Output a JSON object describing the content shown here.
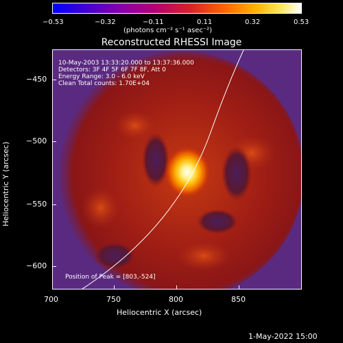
{
  "colorbar": {
    "ticks": [
      "−0.53",
      "−0.32",
      "−0.11",
      "0.11",
      "0.32",
      "0.53"
    ],
    "unit": "(photons cm⁻² s⁻¹ asec⁻²)"
  },
  "title": "Reconstructed RHESSI Image",
  "annotations": {
    "time_range": "10-May-2003 13:33:20.000 to 13:37:36.000",
    "detectors": "Detectors: 3F 4F 5F 6F 7F 8F, Att 0",
    "energy_range": "Energy Range: 3.0 - 6.0 keV",
    "clean_counts": "Clean     Total counts: 1.70E+04",
    "peak_position": "Position of Peak = [803,-524]"
  },
  "axes": {
    "xlabel": "Heliocentric X (arcsec)",
    "ylabel": "Heliocentric Y (arcsec)",
    "xticks": [
      "700",
      "750",
      "800",
      "850"
    ],
    "yticks": [
      "−450",
      "−500",
      "−550",
      "−600"
    ]
  },
  "footer": "1-May-2022 15:00"
}
